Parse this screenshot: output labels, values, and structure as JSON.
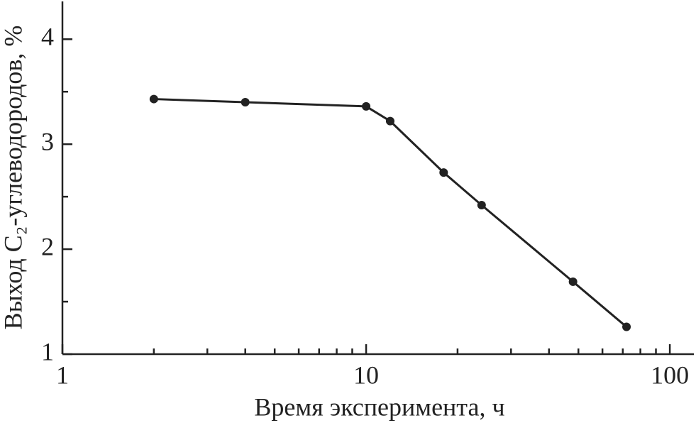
{
  "chart_data": {
    "type": "line",
    "x_label": "Время эксперимента, ч",
    "y_label": "Выход C₂-углеводородов, %",
    "x_log": true,
    "x": [
      2,
      4,
      10,
      12,
      18,
      24,
      48,
      72
    ],
    "series": [
      {
        "color": "#222222",
        "values": [
          3.43,
          3.4,
          3.36,
          3.22,
          2.73,
          2.42,
          1.69,
          1.26
        ]
      }
    ],
    "xlim": [
      1,
      120
    ],
    "xticks": [
      1,
      10,
      100
    ],
    "xticks_minor": [
      2,
      3,
      4,
      5,
      6,
      7,
      8,
      9,
      20,
      30,
      40,
      50,
      60,
      70,
      80,
      90
    ],
    "ylim": [
      1,
      4.36
    ],
    "yticks": [
      1,
      2,
      3,
      4
    ],
    "yticks_minor": [
      1.5,
      2.5,
      3.5
    ]
  }
}
